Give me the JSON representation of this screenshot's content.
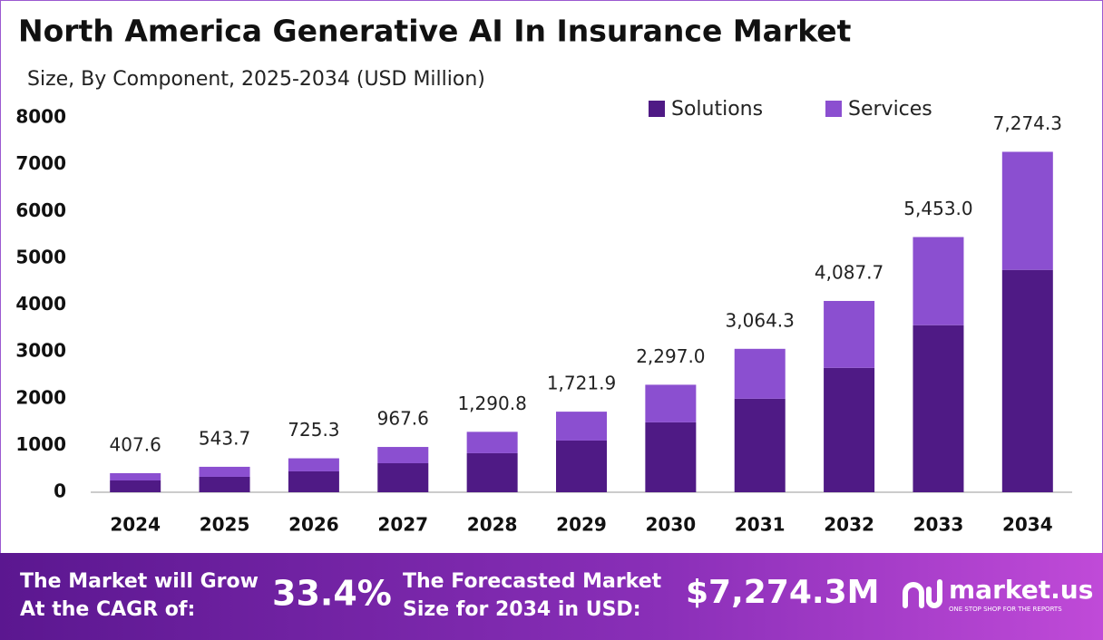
{
  "chart_data": {
    "type": "stacked_bar",
    "title": "North America Generative AI In Insurance Market",
    "subtitle": "Size, By Component, 2025-2034 (USD Million)",
    "categories": [
      "2024",
      "2025",
      "2026",
      "2027",
      "2028",
      "2029",
      "2030",
      "2031",
      "2032",
      "2033",
      "2034"
    ],
    "series": [
      {
        "name": "Solutions",
        "color": "#4f1a85",
        "values": [
          252,
          330,
          446,
          620,
          834,
          1105,
          1493,
          1998,
          2657,
          3569,
          4751
        ]
      },
      {
        "name": "Services",
        "color": "#8b4fd0",
        "values": [
          155.6,
          213.7,
          279.3,
          347.6,
          456.8,
          616.9,
          804.0,
          1066.3,
          1430.7,
          1884.0,
          2523.3
        ]
      }
    ],
    "totals": {
      "values": [
        407.6,
        543.7,
        725.3,
        967.6,
        1290.8,
        1721.9,
        2297.0,
        3064.3,
        4087.7,
        5453.0,
        7274.3
      ],
      "value_labels": [
        "407.6",
        "543.7",
        "725.3",
        "967.6",
        "1,290.8",
        "1,721.9",
        "2,297.0",
        "3,064.3",
        "4,087.7",
        "5,453.0",
        "7,274.3"
      ]
    },
    "ylim": [
      0,
      8000
    ],
    "yticks": [
      0,
      1000,
      2000,
      3000,
      4000,
      5000,
      6000,
      7000,
      8000
    ],
    "grid": false,
    "legend": "top-right"
  },
  "footer": {
    "cagr_text_1": "The Market will Grow",
    "cagr_text_2": "At the CAGR of:",
    "cagr_value": "33.4%",
    "forecast_text_1": "The Forecasted Market",
    "forecast_text_2": "Size for 2034 in USD:",
    "forecast_value": "$7,274.3M",
    "brand": "market.us",
    "tagline": "ONE STOP SHOP FOR THE REPORTS"
  }
}
